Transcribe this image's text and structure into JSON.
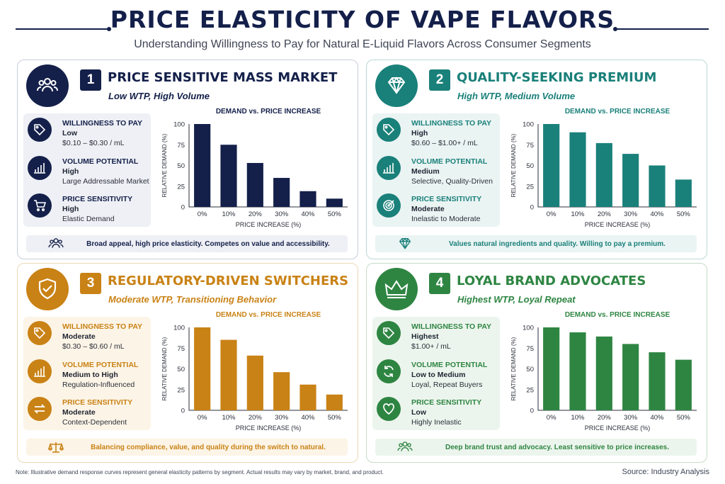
{
  "header": {
    "title": "PRICE ELASTICITY OF VAPE FLAVORS",
    "subtitle": "Understanding Willingness to Pay for Natural E-Liquid Flavors Across Consumer Segments"
  },
  "labels": {
    "wtp": "WILLINGNESS TO PAY",
    "volume": "VOLUME POTENTIAL",
    "sensitivity": "PRICE SENSITIVITY"
  },
  "segments": [
    {
      "number": "1",
      "title": "PRICE SENSITIVE MASS MARKET",
      "subtitle": "Low WTP, High Volume",
      "accent": "#14204a",
      "tint": "#eef0f5",
      "icon": "users-icon",
      "wtp_value": "Low",
      "wtp_desc": "$0.10 – $0.30 / mL",
      "volume_value": "High",
      "volume_desc": "Large Addressable Market",
      "sensitivity_value": "High",
      "sensitivity_desc": "Elastic Demand",
      "stat_icons": [
        "tag-icon",
        "bar-chart-icon",
        "cart-icon"
      ],
      "banner": "Broad appeal, high price elasticity. Competes on value and accessibility.",
      "banner_icon": "users-icon"
    },
    {
      "number": "2",
      "title": "QUALITY-SEEKING PREMIUM",
      "subtitle": "High WTP, Medium Volume",
      "accent": "#1a807a",
      "tint": "#eaf4f3",
      "icon": "diamond-icon",
      "wtp_value": "High",
      "wtp_desc": "$0.60 – $1.00+ / mL",
      "volume_value": "Medium",
      "volume_desc": "Selective, Quality-Driven",
      "sensitivity_value": "Moderate",
      "sensitivity_desc": "Inelastic to Moderate",
      "stat_icons": [
        "tag-icon",
        "bar-chart-icon",
        "target-icon"
      ],
      "banner": "Values natural ingredients and quality. Willing to pay a premium.",
      "banner_icon": "diamond-icon"
    },
    {
      "number": "3",
      "title": "REGULATORY-DRIVEN SWITCHERS",
      "subtitle": "Moderate WTP, Transitioning Behavior",
      "accent": "#c98215",
      "tint": "#fcf4e6",
      "icon": "shield-check-icon",
      "wtp_value": "Moderate",
      "wtp_desc": "$0.30 – $0.60 / mL",
      "volume_value": "Medium to High",
      "volume_desc": "Regulation-Influenced",
      "sensitivity_value": "Moderate",
      "sensitivity_desc": "Context-Dependent",
      "stat_icons": [
        "tag-icon",
        "bar-chart-icon",
        "swap-arrows-icon"
      ],
      "banner": "Balancing compliance, value, and quality during the switch to natural.",
      "banner_icon": "scale-icon"
    },
    {
      "number": "4",
      "title": "LOYAL BRAND ADVOCATES",
      "subtitle": "Highest WTP, Loyal Repeat",
      "accent": "#2e8542",
      "tint": "#ecf5ed",
      "icon": "crown-icon",
      "wtp_value": "Highest",
      "wtp_desc": "$1.00+ / mL",
      "volume_value": "Low to Medium",
      "volume_desc": "Loyal, Repeat Buyers",
      "sensitivity_value": "Low",
      "sensitivity_desc": "Highly Inelastic",
      "stat_icons": [
        "tag-icon",
        "refresh-icon",
        "heart-icon"
      ],
      "banner": "Deep brand trust and advocacy. Least sensitive to price increases.",
      "banner_icon": "users-icon"
    }
  ],
  "chart_data": [
    {
      "type": "bar",
      "title": "DEMAND vs. PRICE INCREASE",
      "xlabel": "PRICE INCREASE (%)",
      "ylabel": "RELATIVE DEMAND (%)",
      "categories": [
        "0%",
        "10%",
        "20%",
        "30%",
        "40%",
        "50%"
      ],
      "values": [
        100,
        75,
        53,
        35,
        19,
        10
      ],
      "ylim": [
        0,
        100
      ],
      "yticks": [
        0,
        25,
        50,
        75,
        100
      ]
    },
    {
      "type": "bar",
      "title": "DEMAND vs. PRICE INCREASE",
      "xlabel": "PRICE INCREASE (%)",
      "ylabel": "RELATIVE DEMAND (%)",
      "categories": [
        "0%",
        "10%",
        "20%",
        "30%",
        "40%",
        "50%"
      ],
      "values": [
        100,
        90,
        77,
        64,
        50,
        33
      ],
      "ylim": [
        0,
        100
      ],
      "yticks": [
        0,
        25,
        50,
        75,
        100
      ]
    },
    {
      "type": "bar",
      "title": "DEMAND vs. PRICE INCREASE",
      "xlabel": "PRICE INCREASE (%)",
      "ylabel": "RELATIVE DEMAND (%)",
      "categories": [
        "0%",
        "10%",
        "20%",
        "30%",
        "40%",
        "50%"
      ],
      "values": [
        100,
        85,
        66,
        46,
        31,
        19
      ],
      "ylim": [
        0,
        100
      ],
      "yticks": [
        0,
        25,
        50,
        75,
        100
      ]
    },
    {
      "type": "bar",
      "title": "DEMAND vs. PRICE INCREASE",
      "xlabel": "PRICE INCREASE (%)",
      "ylabel": "RELATIVE DEMAND (%)",
      "categories": [
        "0%",
        "10%",
        "20%",
        "30%",
        "40%",
        "50%"
      ],
      "values": [
        100,
        94,
        89,
        80,
        70,
        61
      ],
      "ylim": [
        0,
        100
      ],
      "yticks": [
        0,
        25,
        50,
        75,
        100
      ]
    }
  ],
  "footer": {
    "note": "Note: Illustrative demand response curves represent general elasticity patterns by segment. Actual results may vary by market, brand, and product.",
    "source": "Source: Industry Analysis"
  }
}
